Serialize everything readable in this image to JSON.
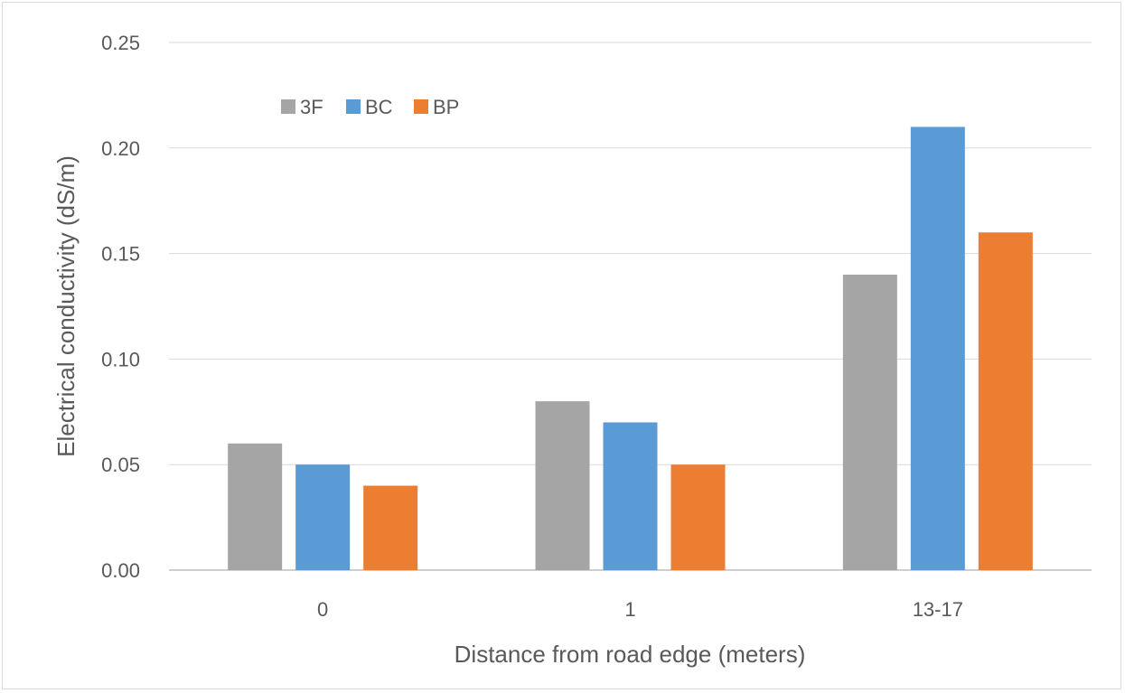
{
  "chart_data": {
    "type": "bar",
    "categories": [
      "0",
      "1",
      "13-17"
    ],
    "series": [
      {
        "name": "3F",
        "values": [
          0.06,
          0.08,
          0.14
        ],
        "color": "#a5a5a5"
      },
      {
        "name": "BC",
        "values": [
          0.05,
          0.07,
          0.21
        ],
        "color": "#5b9bd5"
      },
      {
        "name": "BP",
        "values": [
          0.04,
          0.05,
          0.16
        ],
        "color": "#ed7d31"
      }
    ],
    "title": "",
    "xlabel": "Distance from road edge (meters)",
    "ylabel": "Electrical conductivity (dS/m)",
    "ylim": [
      0,
      0.25
    ],
    "yticks": [
      "0.00",
      "0.05",
      "0.10",
      "0.15",
      "0.20",
      "0.25"
    ],
    "grid": true,
    "legend_position": "top-left"
  }
}
